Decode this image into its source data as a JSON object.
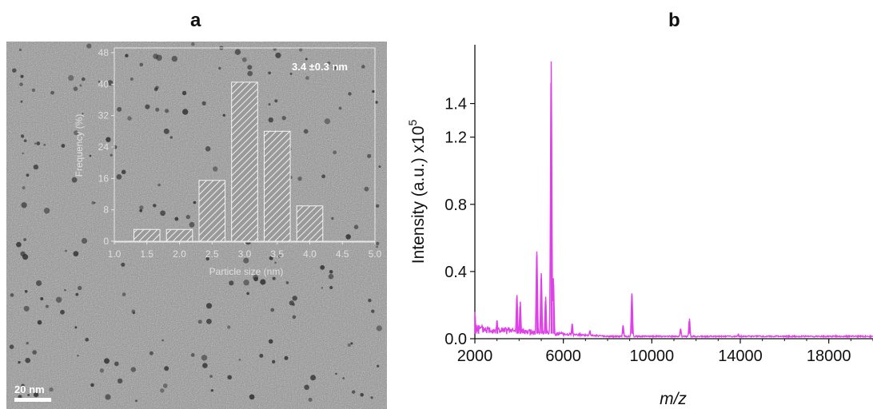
{
  "panels": {
    "a": {
      "letter": "a"
    },
    "b": {
      "letter": "b"
    }
  },
  "scale_bar": {
    "label": "20 nm"
  },
  "chart_data": [
    {
      "type": "bar",
      "panel": "a",
      "annotation": "3.4 ±0.3 nm",
      "xlabel": "Particle size (nm)",
      "ylabel": "Frequency (%)",
      "xlim": [
        1.0,
        5.0
      ],
      "ylim": [
        0,
        48
      ],
      "xticks": [
        "1.0",
        "1.5",
        "2.0",
        "2.5",
        "3.0",
        "3.5",
        "4.0",
        "4.5",
        "5.0"
      ],
      "yticks": [
        "0",
        "8",
        "16",
        "24",
        "32",
        "40",
        "48"
      ],
      "bin_width": 0.4,
      "bin_centers": [
        1.5,
        2.0,
        2.5,
        3.0,
        3.5,
        4.0,
        4.5
      ],
      "values": [
        3,
        3,
        15.5,
        40.5,
        28,
        9,
        0
      ]
    },
    {
      "type": "line",
      "panel": "b",
      "xlabel": "m/z",
      "ylabel": "Intensity (a.u.) x10",
      "ylabel_exponent": "5",
      "xlim": [
        2000,
        20000
      ],
      "ylim": [
        0,
        1.75
      ],
      "xticks": [
        "2000",
        "6000",
        "10000",
        "14000",
        "18000"
      ],
      "yticks": [
        "0.0",
        "0.4",
        "0.8",
        "1.2",
        "1.4"
      ],
      "baseline": 0.01,
      "peaks": [
        {
          "x": 2000,
          "y": 0.16
        },
        {
          "x": 2150,
          "y": 0.08
        },
        {
          "x": 3000,
          "y": 0.11
        },
        {
          "x": 3900,
          "y": 0.26
        },
        {
          "x": 4050,
          "y": 0.22
        },
        {
          "x": 4800,
          "y": 0.52
        },
        {
          "x": 5000,
          "y": 0.39
        },
        {
          "x": 5200,
          "y": 0.25
        },
        {
          "x": 5450,
          "y": 1.65
        },
        {
          "x": 5550,
          "y": 0.36
        },
        {
          "x": 6400,
          "y": 0.09
        },
        {
          "x": 7200,
          "y": 0.05
        },
        {
          "x": 8700,
          "y": 0.08
        },
        {
          "x": 9100,
          "y": 0.27
        },
        {
          "x": 11300,
          "y": 0.06
        },
        {
          "x": 11700,
          "y": 0.12
        },
        {
          "x": 13900,
          "y": 0.02
        }
      ],
      "color": "#e040e8"
    }
  ]
}
